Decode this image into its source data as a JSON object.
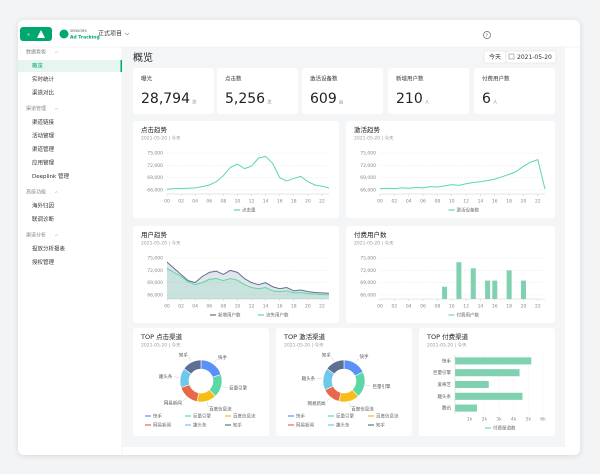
{
  "topbar": {
    "brand": "SENSORS",
    "product": "Ad Tracking",
    "project": "正式项目"
  },
  "sidebar": {
    "groups": [
      {
        "title": "数据看板",
        "items": [
          "概览",
          "实时统计",
          "渠道对比"
        ]
      },
      {
        "title": "渠道管理",
        "items": [
          "渠道链接",
          "活动管理",
          "渠道管理",
          "应用管理",
          "Deeplink 管理"
        ]
      },
      {
        "title": "高级功能",
        "items": [
          "海外归因",
          "联调诊断"
        ]
      },
      {
        "title": "渠道分析",
        "items": [
          "投放分析报表",
          "授权管理"
        ]
      }
    ]
  },
  "header": {
    "title": "概览",
    "today": "今天",
    "date": "2021-05-20"
  },
  "kpis": [
    {
      "label": "曝光",
      "value": "28,794",
      "unit": "次"
    },
    {
      "label": "点击数",
      "value": "5,256",
      "unit": "次"
    },
    {
      "label": "激活设备数",
      "value": "609",
      "unit": "台"
    },
    {
      "label": "新增用户数",
      "value": "210",
      "unit": "人"
    },
    {
      "label": "付费用户数",
      "value": "6",
      "unit": "人"
    }
  ],
  "chart_data": [
    {
      "type": "line",
      "title": "点击趋势",
      "subtitle": "2021-05-20 | 今天",
      "x": [
        0,
        1,
        2,
        3,
        4,
        5,
        6,
        7,
        8,
        9,
        10,
        11,
        12,
        13,
        14,
        15,
        16,
        17,
        18,
        19,
        20,
        21,
        22,
        23
      ],
      "xlim": [
        0,
        23
      ],
      "xticks": [
        {
          "value": 0,
          "label": "00"
        },
        {
          "value": 2,
          "label": "02"
        },
        {
          "value": 4,
          "label": "04"
        },
        {
          "value": 6,
          "label": "06"
        },
        {
          "value": 8,
          "label": "08"
        },
        {
          "value": 10,
          "label": "10"
        },
        {
          "value": 12,
          "label": "12"
        },
        {
          "value": 14,
          "label": "14"
        },
        {
          "value": 16,
          "label": "16"
        },
        {
          "value": 18,
          "label": "18"
        },
        {
          "value": 20,
          "label": "20"
        },
        {
          "value": 22,
          "label": "22"
        }
      ],
      "ylim": [
        65000,
        76000
      ],
      "yticks": [
        {
          "value": 66000,
          "label": "66,000"
        },
        {
          "value": 69000,
          "label": "69,000"
        },
        {
          "value": 72000,
          "label": "72,000"
        },
        {
          "value": 75000,
          "label": "75,000"
        }
      ],
      "series": [
        {
          "name": "点击量",
          "color": "#5ad8a6",
          "values": [
            66200,
            66300,
            66300,
            66400,
            66500,
            66800,
            67200,
            68000,
            69500,
            71500,
            72300,
            71200,
            71800,
            73800,
            74200,
            72500,
            69000,
            68200,
            68800,
            69300,
            68000,
            67200,
            66900,
            66500
          ]
        }
      ]
    },
    {
      "type": "line",
      "title": "激活趋势",
      "subtitle": "2021-05-20 | 今天",
      "x": [
        0,
        1,
        2,
        3,
        4,
        5,
        6,
        7,
        8,
        9,
        10,
        11,
        12,
        13,
        14,
        15,
        16,
        17,
        18,
        19,
        20,
        21,
        22,
        23
      ],
      "xlim": [
        0,
        23
      ],
      "xticks": [
        {
          "value": 0,
          "label": "00"
        },
        {
          "value": 2,
          "label": "02"
        },
        {
          "value": 4,
          "label": "04"
        },
        {
          "value": 6,
          "label": "06"
        },
        {
          "value": 8,
          "label": "08"
        },
        {
          "value": 10,
          "label": "10"
        },
        {
          "value": 12,
          "label": "12"
        },
        {
          "value": 14,
          "label": "14"
        },
        {
          "value": 16,
          "label": "16"
        },
        {
          "value": 18,
          "label": "18"
        },
        {
          "value": 20,
          "label": "20"
        },
        {
          "value": 22,
          "label": "22"
        }
      ],
      "ylim": [
        65000,
        76000
      ],
      "yticks": [
        {
          "value": 66000,
          "label": "66,000"
        },
        {
          "value": 69000,
          "label": "69,000"
        },
        {
          "value": 72000,
          "label": "72,000"
        },
        {
          "value": 75000,
          "label": "75,000"
        }
      ],
      "series": [
        {
          "name": "激活设备数",
          "color": "#5ad8a6",
          "values": [
            66300,
            66400,
            66300,
            66500,
            66400,
            66600,
            66500,
            66800,
            66700,
            67000,
            67300,
            67100,
            67500,
            67800,
            68000,
            68300,
            68600,
            69200,
            69800,
            70500,
            71800,
            72800,
            73400,
            66200
          ]
        }
      ]
    },
    {
      "type": "area",
      "title": "用户趋势",
      "subtitle": "2021-05-20 | 今天",
      "x": [
        0,
        1,
        2,
        3,
        4,
        5,
        6,
        7,
        8,
        9,
        10,
        11,
        12,
        13,
        14,
        15,
        16,
        17,
        18,
        19,
        20,
        21,
        22,
        23
      ],
      "xlim": [
        0,
        23
      ],
      "xticks": [
        {
          "value": 0,
          "label": "00"
        },
        {
          "value": 2,
          "label": "02"
        },
        {
          "value": 4,
          "label": "04"
        },
        {
          "value": 6,
          "label": "06"
        },
        {
          "value": 8,
          "label": "08"
        },
        {
          "value": 10,
          "label": "10"
        },
        {
          "value": 12,
          "label": "12"
        },
        {
          "value": 14,
          "label": "14"
        },
        {
          "value": 16,
          "label": "16"
        },
        {
          "value": 18,
          "label": "18"
        },
        {
          "value": 20,
          "label": "20"
        },
        {
          "value": 22,
          "label": "22"
        }
      ],
      "ylim": [
        65000,
        76000
      ],
      "yticks": [
        {
          "value": 66000,
          "label": "66,000"
        },
        {
          "value": 69000,
          "label": "69,000"
        },
        {
          "value": 72000,
          "label": "72,000"
        },
        {
          "value": 75000,
          "label": "75,000"
        }
      ],
      "series": [
        {
          "name": "新增用户数",
          "color": "#5d7092",
          "values": [
            74000,
            72500,
            71000,
            69500,
            69000,
            70500,
            71500,
            71800,
            71000,
            72000,
            71500,
            70000,
            69000,
            68500,
            69000,
            68000,
            67500,
            67800,
            67000,
            67200,
            66800,
            66600,
            66500,
            66400
          ]
        },
        {
          "name": "流失用户数",
          "color": "#5ad8a6",
          "values": [
            72500,
            71500,
            70500,
            69200,
            68500,
            69000,
            69800,
            70000,
            69500,
            70000,
            69600,
            68500,
            67800,
            67500,
            67800,
            67000,
            66800,
            67000,
            66500,
            66600,
            66300,
            66200,
            66100,
            66000
          ]
        }
      ]
    },
    {
      "type": "bar",
      "title": "付费用户数",
      "subtitle": "2021-05-20 | 今天",
      "x": [
        9,
        11,
        13,
        15,
        16,
        18,
        20
      ],
      "xlim": [
        0,
        23
      ],
      "xticks": [
        {
          "value": 0,
          "label": "00"
        },
        {
          "value": 2,
          "label": "02"
        },
        {
          "value": 4,
          "label": "04"
        },
        {
          "value": 6,
          "label": "06"
        },
        {
          "value": 8,
          "label": "08"
        },
        {
          "value": 10,
          "label": "10"
        },
        {
          "value": 12,
          "label": "12"
        },
        {
          "value": 14,
          "label": "14"
        },
        {
          "value": 16,
          "label": "16"
        },
        {
          "value": 18,
          "label": "18"
        },
        {
          "value": 20,
          "label": "20"
        },
        {
          "value": 22,
          "label": "22"
        }
      ],
      "ylim": [
        65000,
        76000
      ],
      "yticks": [
        {
          "value": 66000,
          "label": "66,000"
        },
        {
          "value": 69000,
          "label": "69,000"
        },
        {
          "value": 72000,
          "label": "72,000"
        },
        {
          "value": 75000,
          "label": "75,000"
        }
      ],
      "series": [
        {
          "name": "付费用户数",
          "color": "#7fd1b0",
          "values": [
            68000,
            74000,
            72500,
            69500,
            69500,
            72000,
            69500
          ]
        }
      ]
    },
    {
      "type": "pie",
      "title": "TOP 点击渠道",
      "subtitle": "2021-05-20 | 今天",
      "categories": [
        "快手",
        "巨量引擎",
        "百度信息流",
        "网易新闻",
        "趣头条",
        "知乎"
      ],
      "values": [
        20,
        18,
        15,
        17,
        15,
        15
      ],
      "colors": [
        "#5b8ff9",
        "#5ad8a6",
        "#f6bd16",
        "#e8684a",
        "#6dc8ec",
        "#5d7092"
      ]
    },
    {
      "type": "pie",
      "title": "TOP 激活渠道",
      "subtitle": "2021-05-20 | 今天",
      "categories": [
        "快手",
        "巨量引擎",
        "百度信息流",
        "网易新闻",
        "趣头条",
        "知乎"
      ],
      "values": [
        18,
        20,
        16,
        14,
        17,
        15
      ],
      "colors": [
        "#5b8ff9",
        "#5ad8a6",
        "#f6bd16",
        "#e8684a",
        "#6dc8ec",
        "#5d7092"
      ]
    },
    {
      "type": "barh",
      "title": "TOP 付费渠道",
      "subtitle": "2021-05-20 | 今天",
      "categories": [
        "快手",
        "巨量引擎",
        "爱奇艺",
        "趣头条",
        "腾讯"
      ],
      "values": [
        5200,
        4400,
        2300,
        4600,
        1500
      ],
      "xlim": [
        0,
        6000
      ],
      "xticks": [
        {
          "value": 1000,
          "label": "1k"
        },
        {
          "value": 2000,
          "label": "2k"
        },
        {
          "value": 3000,
          "label": "3k"
        },
        {
          "value": 4000,
          "label": "4k"
        },
        {
          "value": 5000,
          "label": "5k"
        },
        {
          "value": 6000,
          "label": "6k"
        }
      ],
      "series": [
        {
          "name": "付费渠道数",
          "color": "#7fd1b0"
        }
      ]
    }
  ]
}
